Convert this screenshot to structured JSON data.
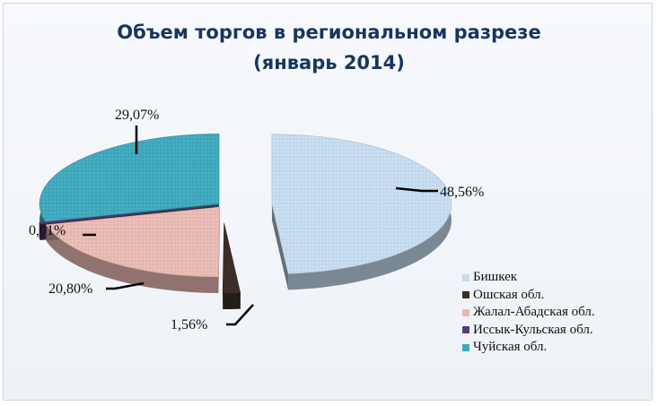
{
  "chart_data": {
    "type": "pie",
    "title": "Объем торгов в региональном разрезе",
    "subtitle": "(январь 2014)",
    "categories": [
      "Бишкек",
      "Ошская обл.",
      "Жалал-Абадская обл.",
      "Иссык-Кульская обл.",
      "Чуйская обл."
    ],
    "values": [
      48.56,
      1.56,
      20.8,
      0.01,
      29.07
    ],
    "data_labels": [
      "48,56%",
      "1,56%",
      "20,80%",
      "0,01%",
      "29,07%"
    ],
    "colors": [
      "#c4dbef",
      "#3a2e26",
      "#e8b9b3",
      "#5a3a78",
      "#3fa8bd"
    ],
    "legend_position": "bottom-right",
    "style": "3d-exploded-pie"
  }
}
